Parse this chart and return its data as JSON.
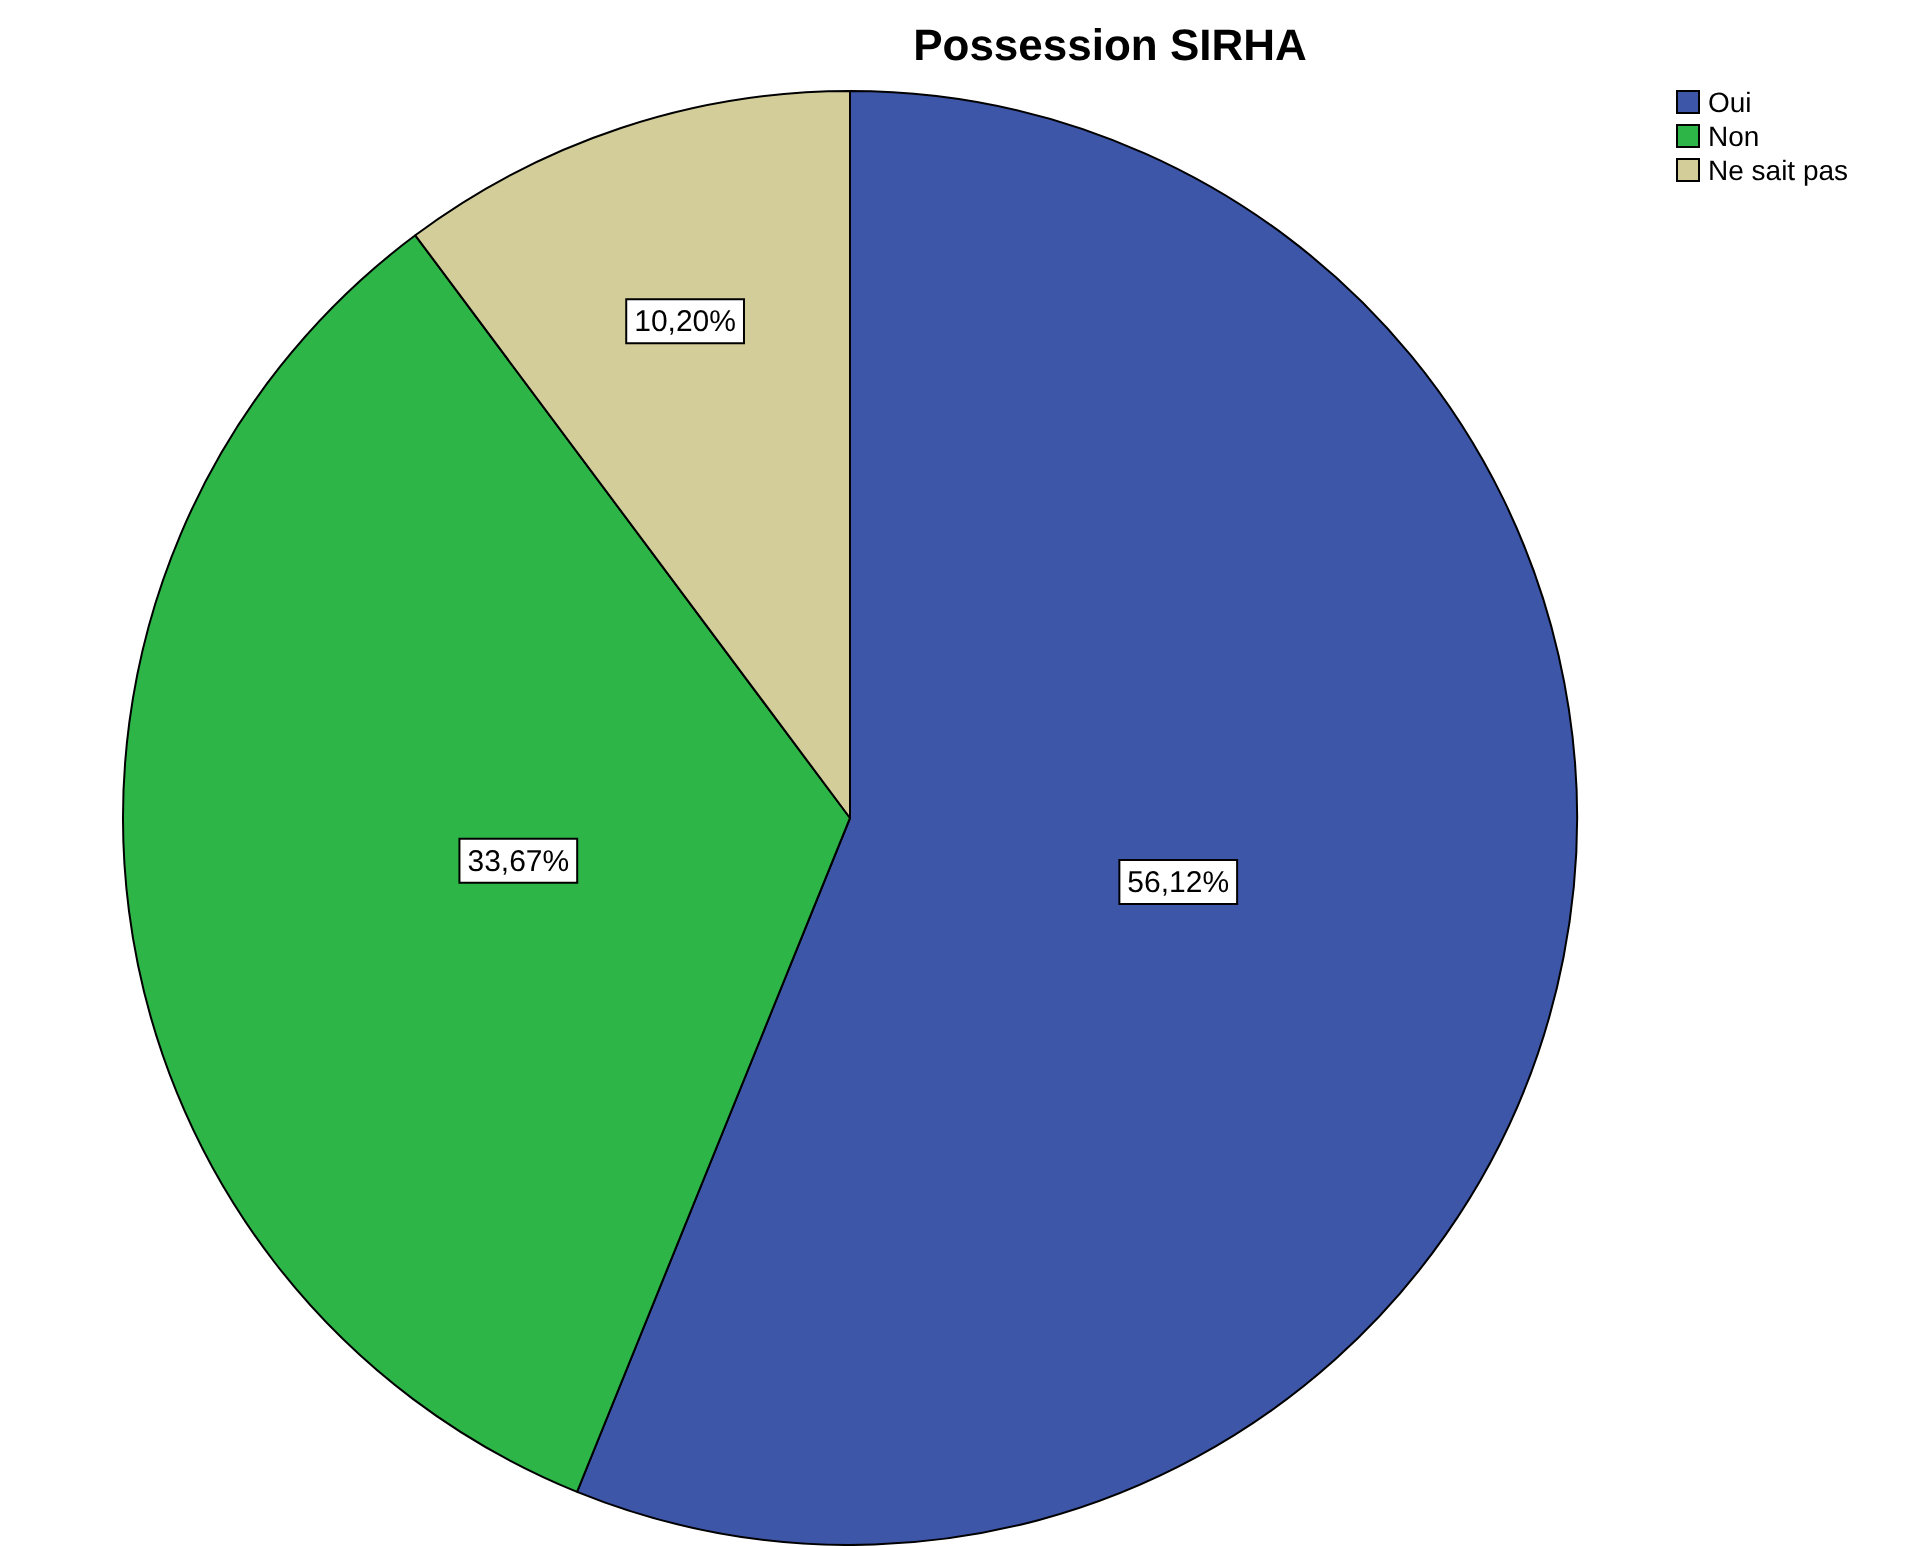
{
  "chart_data": {
    "type": "pie",
    "title": "Possession SIRHA",
    "categories": [
      "Oui",
      "Non",
      "Ne sait pas"
    ],
    "values": [
      56.12,
      33.67,
      10.2
    ],
    "value_labels": [
      "56,12%",
      "33,67%",
      "10,20%"
    ],
    "colors": [
      "#3d56a8",
      "#2db548",
      "#d3cd99"
    ],
    "legend": "top right"
  }
}
